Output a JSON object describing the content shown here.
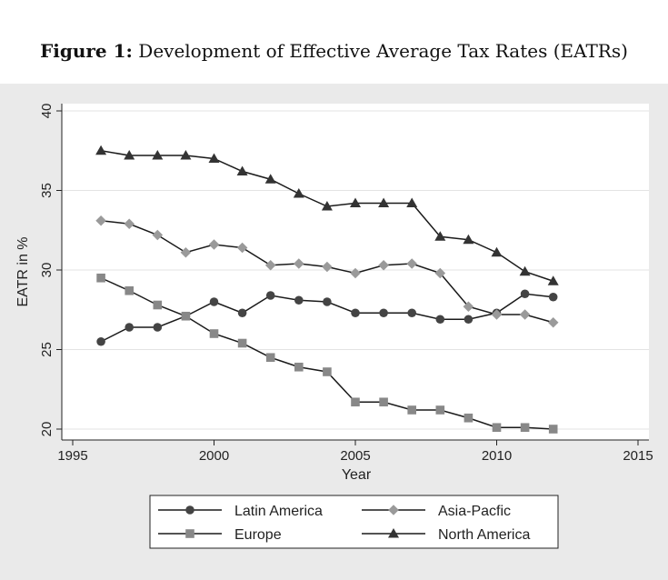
{
  "caption": {
    "label": "Figure 1:",
    "title": "Development of Effective Average Tax Rates (EATRs)"
  },
  "chart_data": {
    "type": "line",
    "title": "Development of Effective Average Tax Rates (EATRs)",
    "xlabel": "Year",
    "ylabel": "EATR in %",
    "xlim": [
      1995,
      2015
    ],
    "ylim": [
      20,
      40
    ],
    "xticks": [
      1995,
      2000,
      2005,
      2010,
      2015
    ],
    "yticks": [
      20,
      25,
      30,
      35,
      40
    ],
    "grid": true,
    "legend_position": "bottom",
    "x": [
      1996,
      1997,
      1998,
      1999,
      2000,
      2001,
      2002,
      2003,
      2004,
      2005,
      2006,
      2007,
      2008,
      2009,
      2010,
      2011,
      2012
    ],
    "series": [
      {
        "name": "Latin America",
        "marker": "circle",
        "values": [
          25.5,
          26.4,
          26.4,
          27.1,
          28.0,
          27.3,
          28.4,
          28.1,
          28.0,
          27.3,
          27.3,
          27.3,
          26.9,
          26.9,
          27.3,
          28.5,
          28.3
        ]
      },
      {
        "name": "Asia-Pacfic",
        "marker": "diamond",
        "values": [
          33.1,
          32.9,
          32.2,
          31.1,
          31.6,
          31.4,
          30.3,
          30.4,
          30.2,
          29.8,
          30.3,
          30.4,
          29.8,
          27.7,
          27.2,
          27.2,
          26.7
        ]
      },
      {
        "name": "Europe",
        "marker": "square",
        "values": [
          29.5,
          28.7,
          27.8,
          27.1,
          26.0,
          25.4,
          24.5,
          23.9,
          23.6,
          21.7,
          21.7,
          21.2,
          21.2,
          20.7,
          20.1,
          20.1,
          20.0
        ]
      },
      {
        "name": "North America",
        "marker": "triangle",
        "values": [
          37.5,
          37.2,
          37.2,
          37.2,
          37.0,
          36.2,
          35.7,
          34.8,
          34.0,
          34.2,
          34.2,
          34.2,
          32.1,
          31.9,
          31.1,
          29.9,
          29.3
        ]
      }
    ]
  }
}
